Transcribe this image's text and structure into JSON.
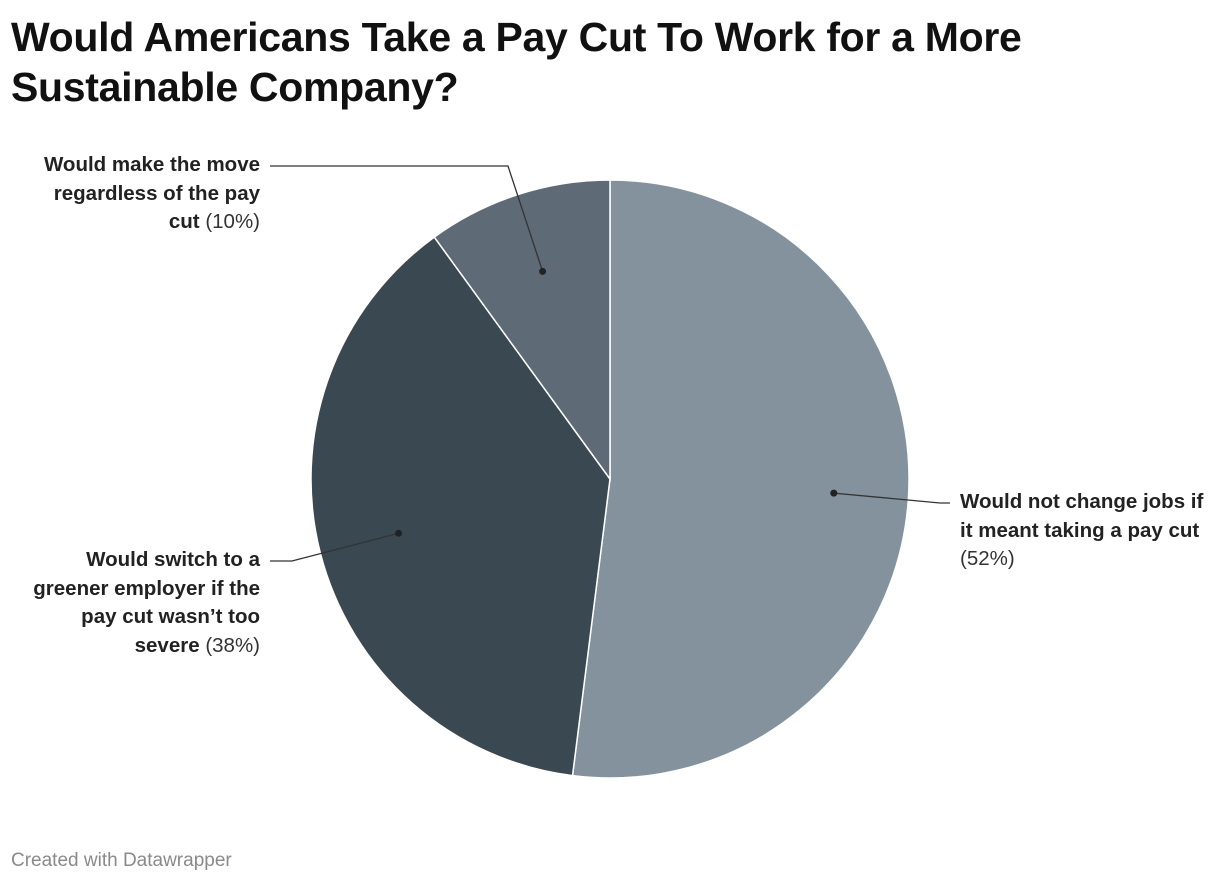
{
  "title": "Would Americans Take a Pay Cut To Work for a More Sustainable Company?",
  "footer": "Created with Datawrapper",
  "chart_data": {
    "type": "pie",
    "title": "Would Americans Take a Pay Cut To Work for a More Sustainable Company?",
    "slices": [
      {
        "label": "Would not change jobs if it meant taking a pay cut",
        "value": 52,
        "value_label": "(52%)",
        "color": "#83929c"
      },
      {
        "label": "Would switch to a greener employer if the pay cut wasn’t too severe",
        "value": 38,
        "value_label": "(38%)",
        "color": "#3a4852"
      },
      {
        "label": "Would make the move regardless of the pay cut",
        "value": 10,
        "value_label": "(10%)",
        "color": "#5e6b76"
      }
    ],
    "start": "12 o'clock",
    "direction": "clockwise",
    "legend": "none (direct labels with leader lines)"
  }
}
